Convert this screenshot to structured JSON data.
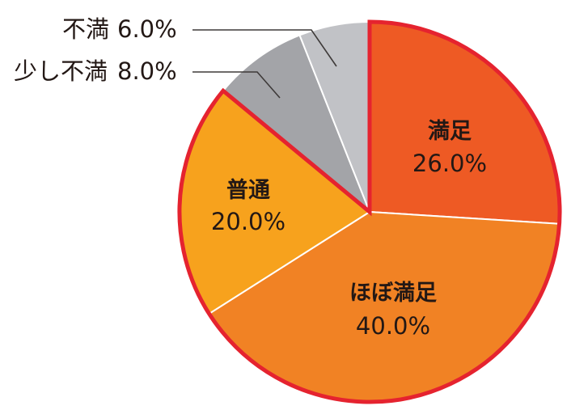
{
  "chart_data": {
    "type": "pie",
    "title": "",
    "start_angle_deg": 0,
    "direction": "clockwise",
    "slices": [
      {
        "label": "満足",
        "value": 26.0,
        "value_text": "26.0%",
        "color": "#EE5A24",
        "highlighted": true
      },
      {
        "label": "ほぼ満足",
        "value": 40.0,
        "value_text": "40.0%",
        "color": "#F18224",
        "highlighted": true
      },
      {
        "label": "普通",
        "value": 20.0,
        "value_text": "20.0%",
        "color": "#F7A21D",
        "highlighted": true
      },
      {
        "label": "少し不満",
        "value": 8.0,
        "value_text": "8.0%",
        "color": "#A3A4A8",
        "highlighted": false
      },
      {
        "label": "不満",
        "value": 6.0,
        "value_text": "6.0%",
        "color": "#C1C2C6",
        "highlighted": false
      }
    ],
    "highlight_outline_color": "#E5232F",
    "separator_color": "#FFFFFF"
  }
}
